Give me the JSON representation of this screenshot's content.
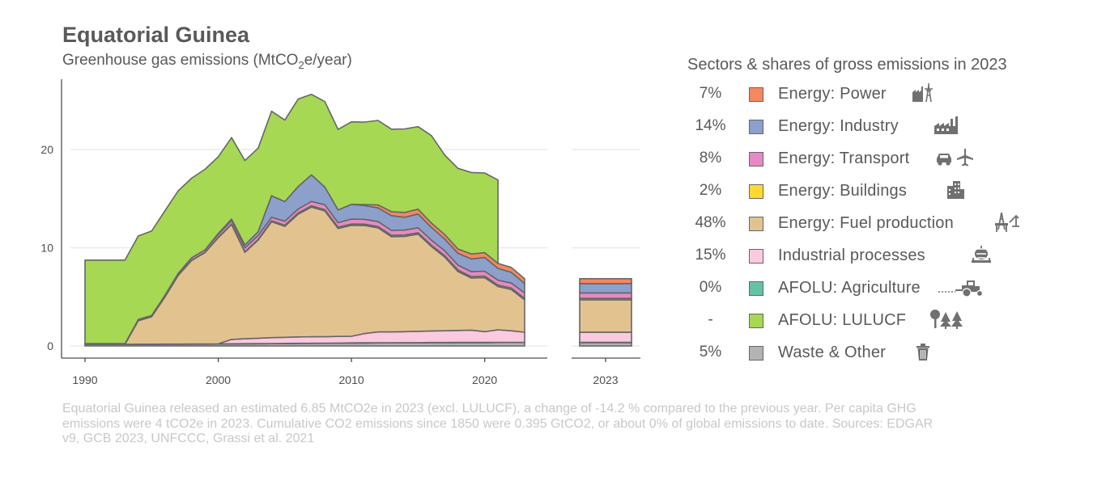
{
  "header": {
    "title": "Equatorial Guinea",
    "subtitle": "Greenhouse gas emissions (MtCO",
    "subtitle_sub": "2",
    "subtitle_end": "e/year)"
  },
  "legend": {
    "title": "Sectors & shares of gross emissions in 2023",
    "items": [
      {
        "share": "7%",
        "label": "Energy: Power",
        "color": "#F4885E",
        "icon": "power-plant-icon"
      },
      {
        "share": "14%",
        "label": "Energy: Industry",
        "color": "#8DA0CB",
        "icon": "factory-icon"
      },
      {
        "share": "8%",
        "label": "Energy: Transport",
        "color": "#E78AC3",
        "icon": "car-plane-icon"
      },
      {
        "share": "2%",
        "label": "Energy: Buildings",
        "color": "#FFD92F",
        "icon": "building-icon"
      },
      {
        "share": "48%",
        "label": "Energy: Fuel production",
        "color": "#E2C390",
        "icon": "oil-rig-icon"
      },
      {
        "share": "15%",
        "label": "Industrial processes",
        "color": "#FBC9E0",
        "icon": "cement-mixer-icon"
      },
      {
        "share": "0%",
        "label": "AFOLU: Agriculture",
        "color": "#66C2A5",
        "icon": "tractor-icon"
      },
      {
        "share": "-",
        "label": "AFOLU: LULUCF",
        "color": "#A6D854",
        "icon": "trees-icon"
      },
      {
        "share": "5%",
        "label": "Waste & Other",
        "color": "#B3B3B3",
        "icon": "trash-icon"
      }
    ]
  },
  "footnote": "Equatorial Guinea released an estimated 6.85 MtCO2e in 2023 (excl. LULUCF), a change of -14.2 % compared to the previous year. Per capita GHG emissions were 4 tCO2e in 2023. Cumulative CO2 emissions since 1850 were 0.395 GtCO2, or about 0% of global emissions to date. Sources: EDGAR v9, GCB 2023, UNFCCC, Grassi et al. 2021",
  "chart_data": {
    "type": "area",
    "x": [
      1990,
      1991,
      1992,
      1993,
      1994,
      1995,
      1996,
      1997,
      1998,
      1999,
      2000,
      2001,
      2002,
      2003,
      2004,
      2005,
      2006,
      2007,
      2008,
      2009,
      2010,
      2011,
      2012,
      2013,
      2014,
      2015,
      2016,
      2017,
      2018,
      2019,
      2020,
      2021,
      2022,
      2023
    ],
    "ylim": [
      -1,
      27
    ],
    "yticks": [
      0,
      10,
      20
    ],
    "xticks": [
      1990,
      2000,
      2010,
      2020
    ],
    "grid": true,
    "stacked_series": [
      {
        "name": "Waste & Other",
        "color": "#B3B3B3",
        "values": [
          0.15,
          0.15,
          0.15,
          0.15,
          0.16,
          0.16,
          0.17,
          0.17,
          0.18,
          0.18,
          0.19,
          0.2,
          0.21,
          0.22,
          0.23,
          0.24,
          0.25,
          0.26,
          0.27,
          0.28,
          0.29,
          0.3,
          0.31,
          0.31,
          0.32,
          0.32,
          0.33,
          0.33,
          0.34,
          0.34,
          0.34,
          0.35,
          0.35,
          0.35
        ]
      },
      {
        "name": "AFOLU: Agriculture",
        "color": "#66C2A5",
        "values": [
          0.02,
          0.02,
          0.02,
          0.02,
          0.02,
          0.02,
          0.02,
          0.02,
          0.02,
          0.02,
          0.02,
          0.02,
          0.02,
          0.02,
          0.02,
          0.02,
          0.02,
          0.02,
          0.02,
          0.02,
          0.02,
          0.02,
          0.02,
          0.02,
          0.02,
          0.02,
          0.02,
          0.02,
          0.02,
          0.02,
          0.02,
          0.02,
          0.02,
          0.02
        ]
      },
      {
        "name": "Industrial processes",
        "color": "#FBC9E0",
        "values": [
          0,
          0,
          0,
          0,
          0,
          0,
          0,
          0,
          0,
          0,
          0,
          0.45,
          0.5,
          0.55,
          0.6,
          0.62,
          0.65,
          0.66,
          0.66,
          0.67,
          0.68,
          0.95,
          1.1,
          1.1,
          1.12,
          1.15,
          1.18,
          1.2,
          1.22,
          1.25,
          1.1,
          1.28,
          1.18,
          1.03
        ]
      },
      {
        "name": "Energy: Fuel production",
        "color": "#E2C390",
        "values": [
          0,
          0,
          0,
          0,
          2.4,
          2.8,
          4.8,
          7.0,
          8.5,
          9.3,
          10.8,
          11.7,
          8.8,
          10.0,
          11.8,
          11.3,
          12.5,
          13.2,
          12.8,
          11.0,
          11.3,
          11.0,
          10.6,
          9.7,
          9.7,
          9.9,
          8.6,
          7.5,
          6.0,
          5.3,
          5.5,
          4.4,
          4.2,
          3.3
        ]
      },
      {
        "name": "Energy: Buildings",
        "color": "#FFD92F",
        "values": [
          0.02,
          0.02,
          0.02,
          0.02,
          0.02,
          0.02,
          0.02,
          0.02,
          0.03,
          0.03,
          0.04,
          0.05,
          0.05,
          0.06,
          0.1,
          0.12,
          0.12,
          0.13,
          0.13,
          0.13,
          0.13,
          0.13,
          0.13,
          0.14,
          0.14,
          0.14,
          0.14,
          0.14,
          0.15,
          0.15,
          0.15,
          0.15,
          0.15,
          0.15
        ]
      },
      {
        "name": "Energy: Transport",
        "color": "#E78AC3",
        "values": [
          0.05,
          0.05,
          0.05,
          0.05,
          0.1,
          0.1,
          0.15,
          0.2,
          0.25,
          0.25,
          0.3,
          0.35,
          0.4,
          0.4,
          0.35,
          0.4,
          0.4,
          0.45,
          0.5,
          0.45,
          0.5,
          0.5,
          0.5,
          0.5,
          0.5,
          0.5,
          0.5,
          0.5,
          0.5,
          0.5,
          0.5,
          0.5,
          0.5,
          0.55
        ]
      },
      {
        "name": "Energy: Industry",
        "color": "#8DA0CB",
        "values": [
          0,
          0,
          0,
          0,
          0,
          0,
          0,
          0,
          0,
          0,
          0.1,
          0.15,
          0.3,
          0.4,
          2.2,
          2.0,
          2.3,
          2.7,
          1.8,
          1.3,
          1.5,
          1.4,
          1.4,
          1.5,
          1.3,
          1.4,
          1.3,
          1.2,
          1.2,
          1.3,
          1.4,
          1.2,
          1.1,
          0.95
        ]
      },
      {
        "name": "Energy: Power",
        "color": "#F4885E",
        "values": [
          0,
          0,
          0,
          0,
          0,
          0,
          0,
          0,
          0,
          0,
          0,
          0,
          0,
          0,
          0,
          0,
          0,
          0,
          0,
          0,
          0,
          0.1,
          0.3,
          0.4,
          0.5,
          0.5,
          0.45,
          0.45,
          0.45,
          0.5,
          0.5,
          0.5,
          0.5,
          0.5
        ]
      },
      {
        "name": "AFOLU: LULUCF",
        "color": "#A6D854",
        "values": [
          8.5,
          8.5,
          8.5,
          8.5,
          8.5,
          8.6,
          8.6,
          8.4,
          8.1,
          8.2,
          7.8,
          8.3,
          8.6,
          8.5,
          8.6,
          8.3,
          8.9,
          8.2,
          8.7,
          8.2,
          8.4,
          8.4,
          8.6,
          8.4,
          8.5,
          8.4,
          8.9,
          8.1,
          8.2,
          8.3,
          8.1,
          8.5,
          null,
          null
        ]
      }
    ],
    "bar_2023": {
      "category": "2023",
      "values": [
        {
          "name": "Waste & Other",
          "value": 0.35,
          "color": "#B3B3B3"
        },
        {
          "name": "AFOLU: Agriculture",
          "value": 0.02,
          "color": "#66C2A5"
        },
        {
          "name": "Industrial processes",
          "value": 1.03,
          "color": "#FBC9E0"
        },
        {
          "name": "Energy: Fuel production",
          "value": 3.3,
          "color": "#E2C390"
        },
        {
          "name": "Energy: Buildings",
          "value": 0.15,
          "color": "#FFD92F"
        },
        {
          "name": "Energy: Transport",
          "value": 0.55,
          "color": "#E78AC3"
        },
        {
          "name": "Energy: Industry",
          "value": 0.95,
          "color": "#8DA0CB"
        },
        {
          "name": "Energy: Power",
          "value": 0.5,
          "color": "#F4885E"
        }
      ]
    }
  }
}
